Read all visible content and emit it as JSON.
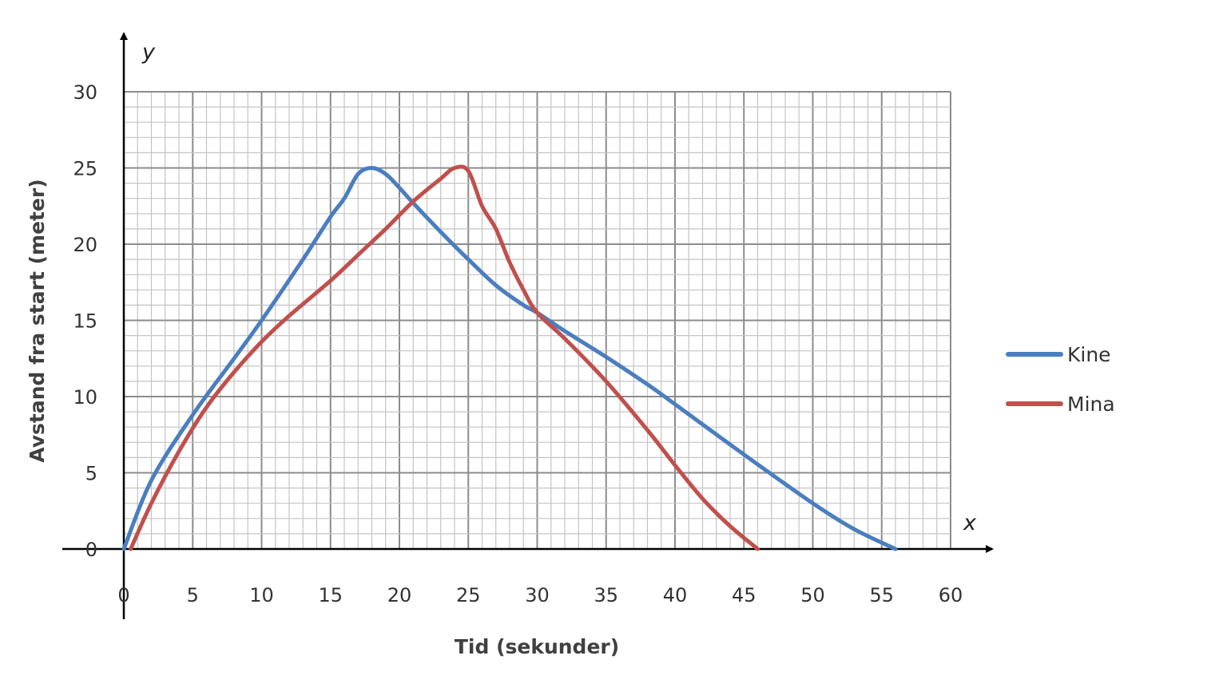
{
  "chart_data": {
    "type": "line",
    "xlabel": "Tid (sekunder)",
    "ylabel": "Avstand fra start (meter)",
    "x_axis_letter": "x",
    "y_axis_letter": "y",
    "xlim": [
      0,
      60
    ],
    "ylim": [
      0,
      30
    ],
    "x_ticks": [
      0,
      5,
      10,
      15,
      20,
      25,
      30,
      35,
      40,
      45,
      50,
      55,
      60
    ],
    "y_ticks": [
      0,
      5,
      10,
      15,
      20,
      25,
      30
    ],
    "grid": true,
    "minor_grid_step_x": 1,
    "minor_grid_step_y": 1,
    "legend_position": "right",
    "series": [
      {
        "name": "Kine",
        "color": "#4a7ebf",
        "points": [
          [
            0,
            0
          ],
          [
            2,
            4.5
          ],
          [
            5,
            8.8
          ],
          [
            8,
            12.5
          ],
          [
            10,
            15
          ],
          [
            13,
            19
          ],
          [
            15,
            21.8
          ],
          [
            16,
            23
          ],
          [
            17,
            24.6
          ],
          [
            18,
            25
          ],
          [
            19,
            24.6
          ],
          [
            20,
            23.7
          ],
          [
            21,
            22.7
          ],
          [
            23,
            20.8
          ],
          [
            25,
            19
          ],
          [
            27,
            17.3
          ],
          [
            29,
            16
          ],
          [
            30,
            15.5
          ],
          [
            32,
            14.3
          ],
          [
            35,
            12.6
          ],
          [
            38,
            10.8
          ],
          [
            40,
            9.5
          ],
          [
            45,
            6.2
          ],
          [
            50,
            3
          ],
          [
            53,
            1.3
          ],
          [
            56,
            0
          ]
        ]
      },
      {
        "name": "Mina",
        "color": "#c0504d",
        "points": [
          [
            0.5,
            0
          ],
          [
            2,
            3
          ],
          [
            4,
            6.4
          ],
          [
            6,
            9.3
          ],
          [
            8,
            11.6
          ],
          [
            10,
            13.6
          ],
          [
            12,
            15.3
          ],
          [
            15,
            17.6
          ],
          [
            17,
            19.3
          ],
          [
            19,
            21
          ],
          [
            21,
            22.8
          ],
          [
            23,
            24.3
          ],
          [
            24,
            25
          ],
          [
            25,
            24.8
          ],
          [
            26,
            22.5
          ],
          [
            27,
            21
          ],
          [
            28,
            18.8
          ],
          [
            29,
            17
          ],
          [
            30,
            15.5
          ],
          [
            32,
            13.8
          ],
          [
            35,
            11
          ],
          [
            38,
            7.8
          ],
          [
            40,
            5.5
          ],
          [
            42,
            3.3
          ],
          [
            44,
            1.5
          ],
          [
            46,
            0
          ]
        ]
      }
    ]
  }
}
